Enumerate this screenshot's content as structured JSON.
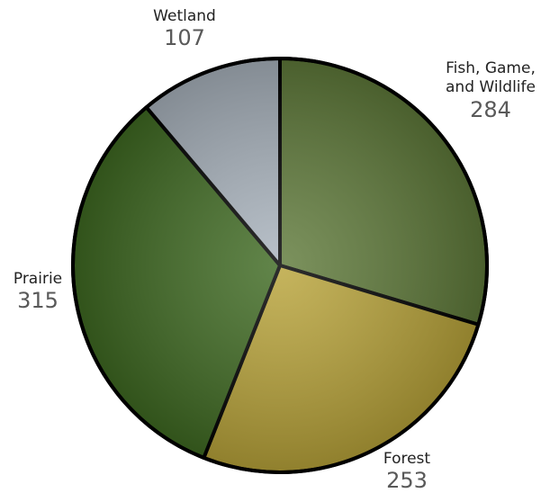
{
  "chart_data": {
    "type": "pie",
    "categories": [
      "Fish, Game, and Wildlife",
      "Forest",
      "Prairie",
      "Wetland"
    ],
    "values": [
      284,
      253,
      315,
      107
    ],
    "colors": [
      "#5f7a3a",
      "#b9a43a",
      "#3f6a22",
      "#a9b3bd"
    ]
  }
}
